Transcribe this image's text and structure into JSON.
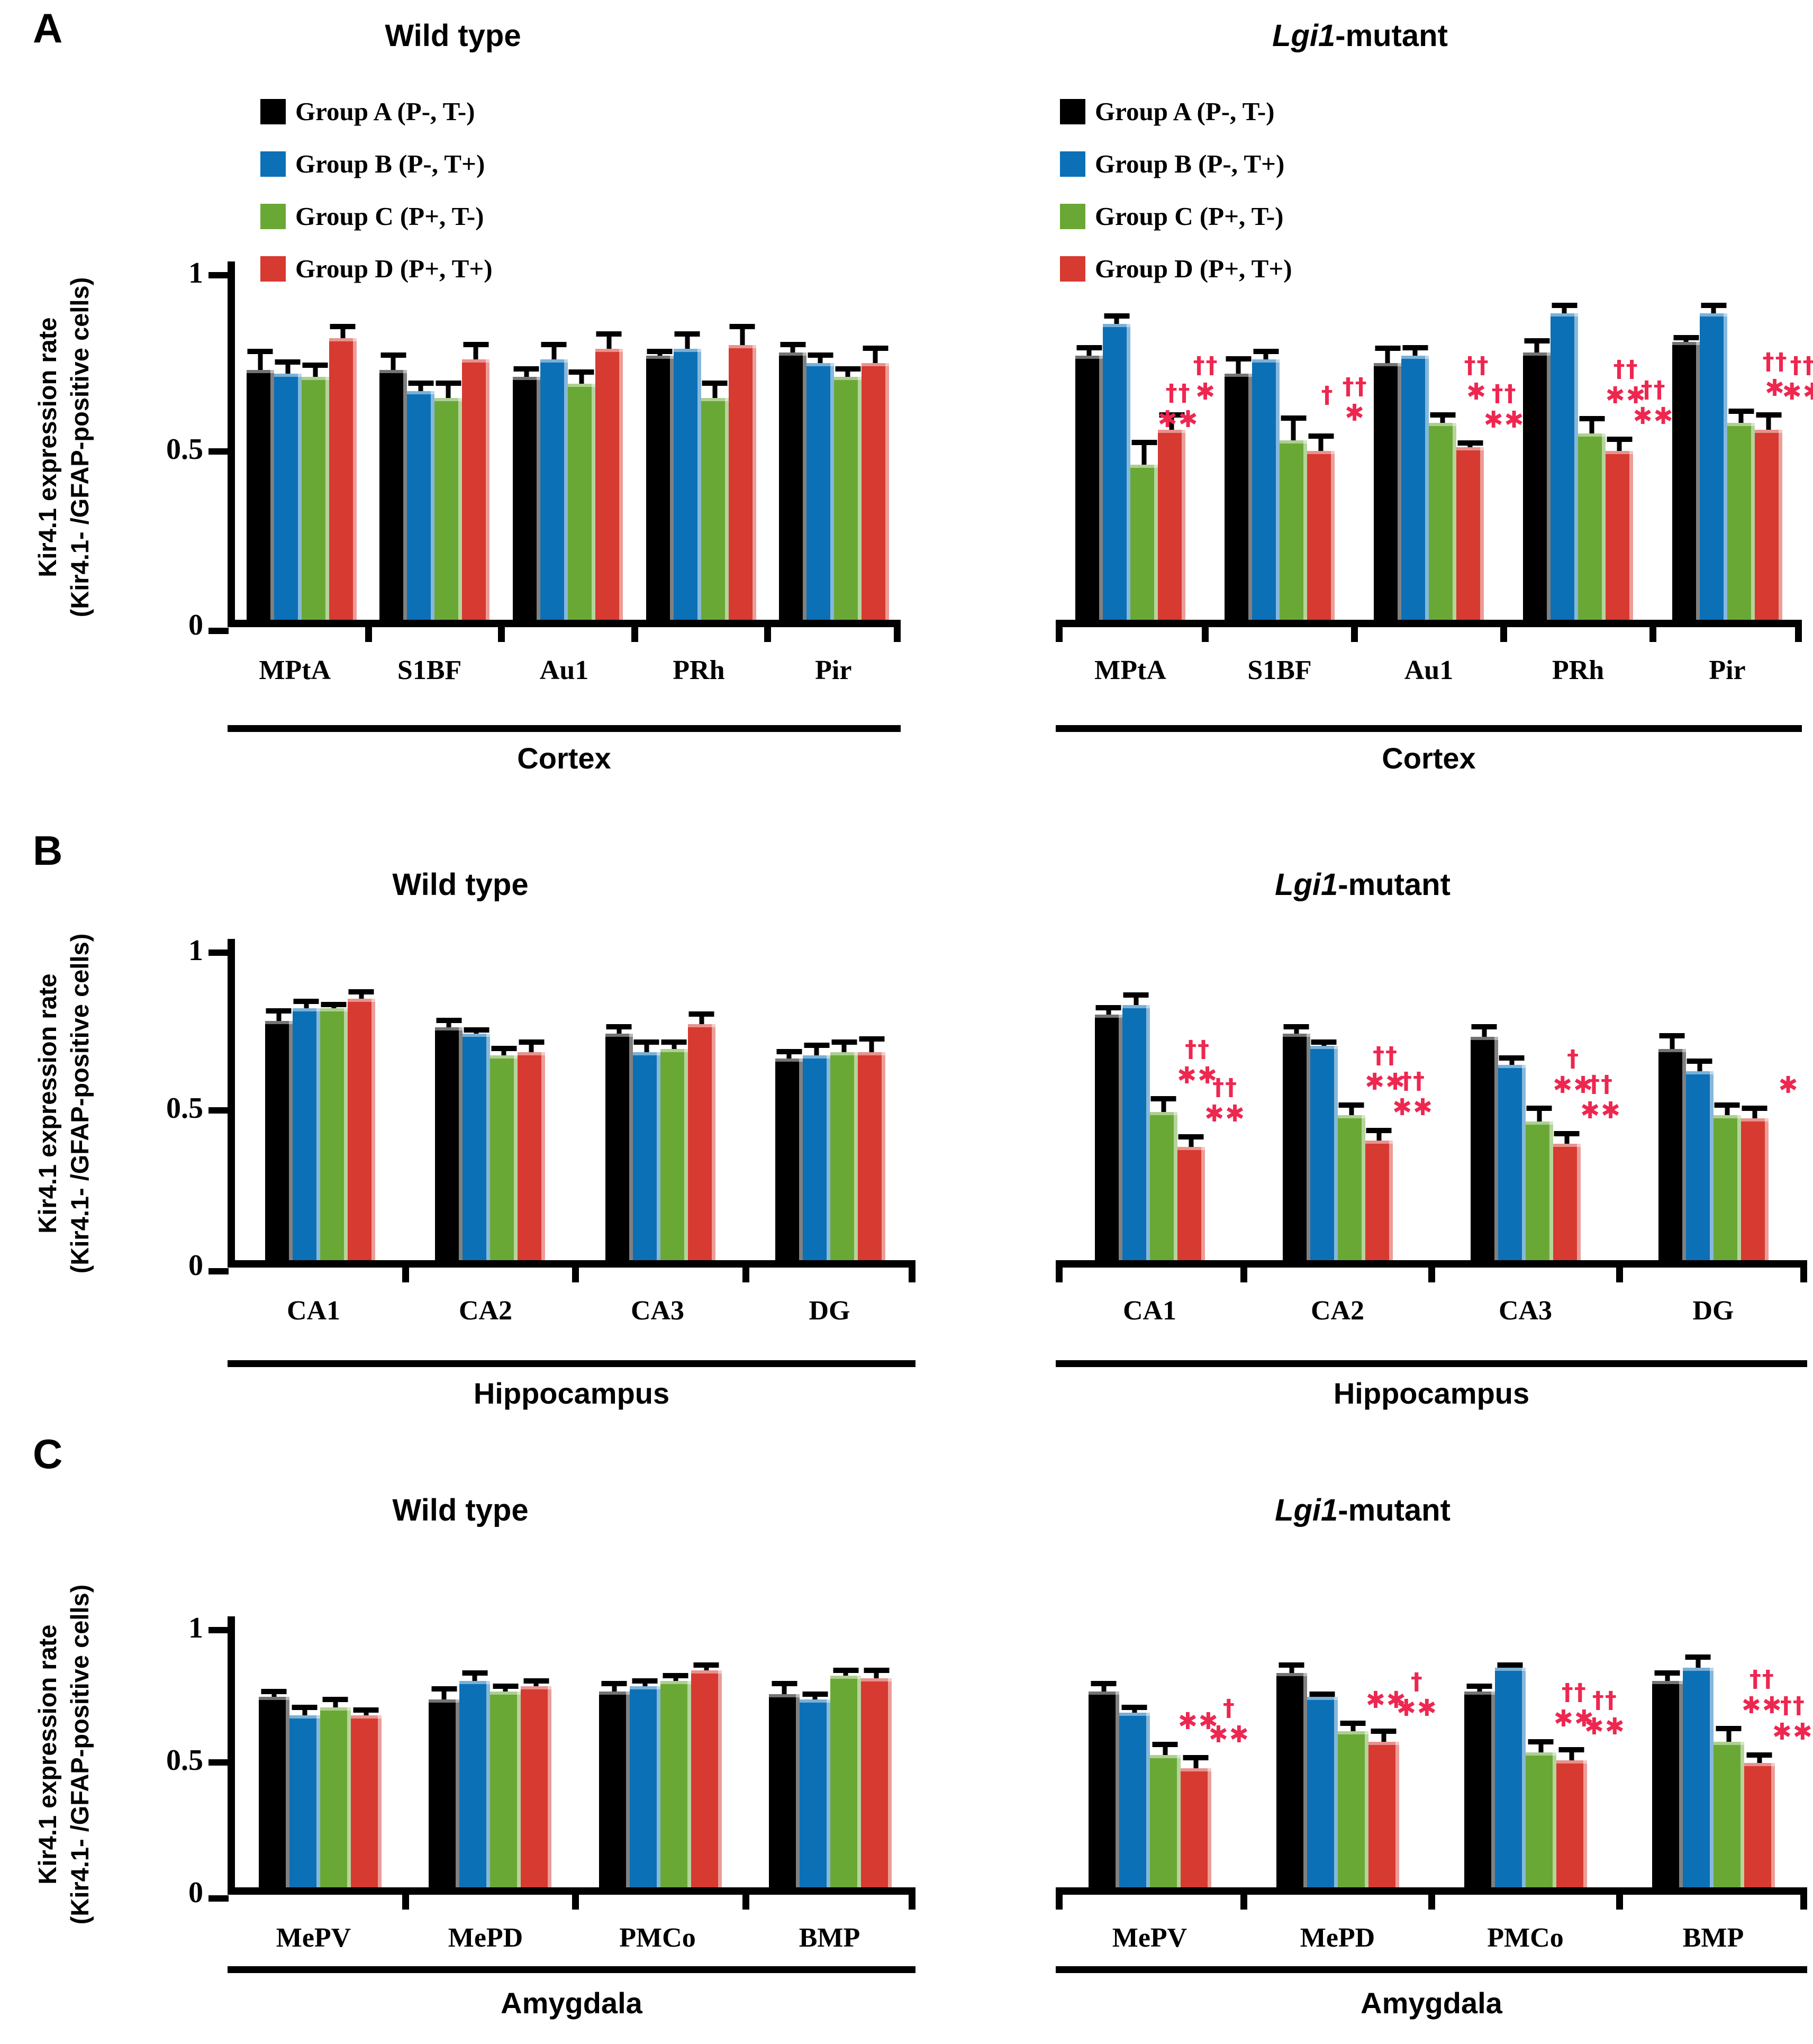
{
  "y_axis": {
    "label_line1": "Kir4.1 expression rate",
    "label_line2": "(Kir4.1- /GFAP-positive cells)",
    "tick_labels": [
      "1",
      "0.5",
      "0"
    ],
    "min": 0,
    "max": 1
  },
  "annotation_color": "#ee2750",
  "legend": {
    "items": [
      {
        "key": "A",
        "label": "Group A (P-, T-)",
        "color": "#000000"
      },
      {
        "key": "B",
        "label": "Group B (P-, T+)",
        "color": "#0c70b6"
      },
      {
        "key": "C",
        "label": "Group C (P+, T-)",
        "color": "#6aa836"
      },
      {
        "key": "D",
        "label": "Group D (P+, T+)",
        "color": "#d63a31"
      }
    ]
  },
  "panels": [
    {
      "letter": "A",
      "region": "Cortex"
    },
    {
      "letter": "B",
      "region": "Hippocampus"
    },
    {
      "letter": "C",
      "region": "Amygdala"
    }
  ],
  "chart_data": [
    {
      "id": "cortex-wild-type",
      "type": "bar",
      "panel": "A",
      "title_parts": [
        {
          "text": "Wild type",
          "italic": false
        }
      ],
      "show_legend": true,
      "ylim": [
        0,
        1
      ],
      "yticks": [
        1,
        0.5,
        0
      ],
      "region": "Cortex",
      "categories": [
        "MPtA",
        "S1BF",
        "Au1",
        "PRh",
        "Pir"
      ],
      "series": [
        {
          "key": "A",
          "name": "Group A (P-, T-)",
          "color": "#000000",
          "values": [
            0.71,
            0.71,
            0.69,
            0.75,
            0.76
          ],
          "errors": [
            0.06,
            0.05,
            0.03,
            0.02,
            0.03
          ]
        },
        {
          "key": "B",
          "name": "Group B (P-, T+)",
          "color": "#0c70b6",
          "values": [
            0.7,
            0.65,
            0.74,
            0.77,
            0.73
          ],
          "errors": [
            0.04,
            0.03,
            0.05,
            0.05,
            0.03
          ]
        },
        {
          "key": "C",
          "name": "Group C (P+, T-)",
          "color": "#6aa836",
          "values": [
            0.69,
            0.63,
            0.67,
            0.63,
            0.69
          ],
          "errors": [
            0.04,
            0.05,
            0.04,
            0.05,
            0.03
          ]
        },
        {
          "key": "D",
          "name": "Group D (P+, T+)",
          "color": "#d63a31",
          "values": [
            0.8,
            0.74,
            0.77,
            0.78,
            0.73
          ],
          "errors": [
            0.04,
            0.05,
            0.05,
            0.06,
            0.05
          ]
        }
      ],
      "annotations": []
    },
    {
      "id": "cortex-lgi1-mutant",
      "type": "bar",
      "panel": "A",
      "title_parts": [
        {
          "text": "Lgi1",
          "italic": true
        },
        {
          "text": "-mutant",
          "italic": false
        }
      ],
      "show_legend": true,
      "ylim": [
        0,
        1
      ],
      "yticks": [
        1,
        0.5,
        0
      ],
      "region": "Cortex",
      "categories": [
        "MPtA",
        "S1BF",
        "Au1",
        "PRh",
        "Pir"
      ],
      "series": [
        {
          "key": "A",
          "name": "Group A (P-, T-)",
          "color": "#000000",
          "values": [
            0.75,
            0.7,
            0.73,
            0.76,
            0.79
          ],
          "errors": [
            0.03,
            0.05,
            0.05,
            0.04,
            0.02
          ]
        },
        {
          "key": "B",
          "name": "Group B (P-, T+)",
          "color": "#0c70b6",
          "values": [
            0.84,
            0.74,
            0.75,
            0.87,
            0.87
          ],
          "errors": [
            0.03,
            0.03,
            0.03,
            0.03,
            0.03
          ]
        },
        {
          "key": "C",
          "name": "Group C (P+, T-)",
          "color": "#6aa836",
          "values": [
            0.44,
            0.51,
            0.56,
            0.53,
            0.56
          ],
          "errors": [
            0.07,
            0.07,
            0.03,
            0.05,
            0.04
          ]
        },
        {
          "key": "D",
          "name": "Group D (P+, T+)",
          "color": "#d63a31",
          "values": [
            0.54,
            0.48,
            0.49,
            0.48,
            0.54
          ],
          "errors": [
            0.05,
            0.05,
            0.02,
            0.04,
            0.05
          ]
        }
      ],
      "annotations": [
        {
          "category": "MPtA",
          "series": "C",
          "symbols": [
            "††",
            "**"
          ]
        },
        {
          "category": "MPtA",
          "series": "D",
          "symbols": [
            "††",
            "*"
          ]
        },
        {
          "category": "S1BF",
          "series": "C",
          "symbols": [
            "†"
          ]
        },
        {
          "category": "S1BF",
          "series": "D",
          "symbols": [
            "††",
            "*"
          ]
        },
        {
          "category": "Au1",
          "series": "C",
          "symbols": [
            "††",
            "*"
          ]
        },
        {
          "category": "Au1",
          "series": "D",
          "symbols": [
            "††",
            "**"
          ]
        },
        {
          "category": "PRh",
          "series": "C",
          "symbols": [
            "††",
            "**"
          ]
        },
        {
          "category": "PRh",
          "series": "D",
          "symbols": [
            "††",
            "**"
          ]
        },
        {
          "category": "Pir",
          "series": "C",
          "symbols": [
            "††",
            "*"
          ]
        },
        {
          "category": "Pir",
          "series": "D",
          "symbols": [
            "††",
            "**"
          ]
        }
      ]
    },
    {
      "id": "hippocampus-wild-type",
      "type": "bar",
      "panel": "B",
      "title_parts": [
        {
          "text": "Wild type",
          "italic": false
        }
      ],
      "show_legend": false,
      "ylim": [
        0,
        1
      ],
      "yticks": [
        1,
        0.5,
        0
      ],
      "region": "Hippocampus",
      "categories": [
        "CA1",
        "CA2",
        "CA3",
        "DG"
      ],
      "series": [
        {
          "key": "A",
          "name": "Group A (P-, T-)",
          "color": "#000000",
          "values": [
            0.76,
            0.74,
            0.72,
            0.64
          ],
          "errors": [
            0.04,
            0.03,
            0.03,
            0.03
          ]
        },
        {
          "key": "B",
          "name": "Group B (P-, T+)",
          "color": "#0c70b6",
          "values": [
            0.8,
            0.72,
            0.66,
            0.65
          ],
          "errors": [
            0.03,
            0.02,
            0.04,
            0.04
          ]
        },
        {
          "key": "C",
          "name": "Group C (P+, T-)",
          "color": "#6aa836",
          "values": [
            0.8,
            0.65,
            0.67,
            0.66
          ],
          "errors": [
            0.02,
            0.03,
            0.03,
            0.04
          ]
        },
        {
          "key": "D",
          "name": "Group D (P+, T+)",
          "color": "#d63a31",
          "values": [
            0.83,
            0.66,
            0.75,
            0.66
          ],
          "errors": [
            0.03,
            0.04,
            0.04,
            0.05
          ]
        }
      ],
      "annotations": []
    },
    {
      "id": "hippocampus-lgi1-mutant",
      "type": "bar",
      "panel": "B",
      "title_parts": [
        {
          "text": "Lgi1",
          "italic": true
        },
        {
          "text": "-mutant",
          "italic": false
        }
      ],
      "show_legend": false,
      "ylim": [
        0,
        1
      ],
      "yticks": [
        1,
        0.5,
        0
      ],
      "region": "Hippocampus",
      "categories": [
        "CA1",
        "CA2",
        "CA3",
        "DG"
      ],
      "series": [
        {
          "key": "A",
          "name": "Group A (P-, T-)",
          "color": "#000000",
          "values": [
            0.78,
            0.72,
            0.71,
            0.67
          ],
          "errors": [
            0.03,
            0.03,
            0.04,
            0.05
          ]
        },
        {
          "key": "B",
          "name": "Group B (P-, T+)",
          "color": "#0c70b6",
          "values": [
            0.81,
            0.68,
            0.62,
            0.6
          ],
          "errors": [
            0.04,
            0.02,
            0.03,
            0.04
          ]
        },
        {
          "key": "C",
          "name": "Group C (P+, T-)",
          "color": "#6aa836",
          "values": [
            0.47,
            0.46,
            0.44,
            0.46
          ],
          "errors": [
            0.05,
            0.04,
            0.05,
            0.04
          ]
        },
        {
          "key": "D",
          "name": "Group D (P+, T+)",
          "color": "#d63a31",
          "values": [
            0.36,
            0.38,
            0.37,
            0.45
          ],
          "errors": [
            0.04,
            0.04,
            0.04,
            0.04
          ]
        }
      ],
      "annotations": [
        {
          "category": "CA1",
          "series": "C",
          "symbols": [
            "††",
            "**"
          ]
        },
        {
          "category": "CA1",
          "series": "D",
          "symbols": [
            "††",
            "**"
          ]
        },
        {
          "category": "CA2",
          "series": "C",
          "symbols": [
            "††",
            "**"
          ]
        },
        {
          "category": "CA2",
          "series": "D",
          "symbols": [
            "††",
            "**"
          ]
        },
        {
          "category": "CA3",
          "series": "C",
          "symbols": [
            "†",
            "**"
          ]
        },
        {
          "category": "CA3",
          "series": "D",
          "symbols": [
            "††",
            "**"
          ]
        },
        {
          "category": "DG",
          "series": "D",
          "symbols": [
            "*"
          ]
        }
      ]
    },
    {
      "id": "amygdala-wild-type",
      "type": "bar",
      "panel": "C",
      "title_parts": [
        {
          "text": "Wild type",
          "italic": false
        }
      ],
      "show_legend": false,
      "ylim": [
        0,
        1
      ],
      "yticks": [
        1,
        0.5,
        0
      ],
      "region": "Amygdala",
      "categories": [
        "MePV",
        "MePD",
        "PMCo",
        "BMP"
      ],
      "series": [
        {
          "key": "A",
          "name": "Group A (P-, T-)",
          "color": "#000000",
          "values": [
            0.72,
            0.71,
            0.74,
            0.73
          ],
          "errors": [
            0.03,
            0.05,
            0.04,
            0.05
          ]
        },
        {
          "key": "B",
          "name": "Group B (P-, T+)",
          "color": "#0c70b6",
          "values": [
            0.65,
            0.78,
            0.76,
            0.71
          ],
          "errors": [
            0.04,
            0.04,
            0.03,
            0.03
          ]
        },
        {
          "key": "C",
          "name": "Group C (P+, T-)",
          "color": "#6aa836",
          "values": [
            0.68,
            0.74,
            0.78,
            0.8
          ],
          "errors": [
            0.04,
            0.03,
            0.03,
            0.03
          ]
        },
        {
          "key": "D",
          "name": "Group D (P+, T+)",
          "color": "#d63a31",
          "values": [
            0.65,
            0.76,
            0.82,
            0.79
          ],
          "errors": [
            0.03,
            0.03,
            0.03,
            0.04
          ]
        }
      ],
      "annotations": []
    },
    {
      "id": "amygdala-lgi1-mutant",
      "type": "bar",
      "panel": "C",
      "title_parts": [
        {
          "text": "Lgi1",
          "italic": true
        },
        {
          "text": "-mutant",
          "italic": false
        }
      ],
      "show_legend": false,
      "ylim": [
        0,
        1
      ],
      "yticks": [
        1,
        0.5,
        0
      ],
      "region": "Amygdala",
      "categories": [
        "MePV",
        "MePD",
        "PMCo",
        "BMP"
      ],
      "series": [
        {
          "key": "A",
          "name": "Group A (P-, T-)",
          "color": "#000000",
          "values": [
            0.74,
            0.81,
            0.74,
            0.78
          ],
          "errors": [
            0.04,
            0.04,
            0.03,
            0.04
          ]
        },
        {
          "key": "B",
          "name": "Group B (P-, T+)",
          "color": "#0c70b6",
          "values": [
            0.66,
            0.72,
            0.83,
            0.83
          ],
          "errors": [
            0.03,
            0.02,
            0.02,
            0.05
          ]
        },
        {
          "key": "C",
          "name": "Group C (P+, T-)",
          "color": "#6aa836",
          "values": [
            0.5,
            0.59,
            0.51,
            0.55
          ],
          "errors": [
            0.05,
            0.04,
            0.05,
            0.06
          ]
        },
        {
          "key": "D",
          "name": "Group D (P+, T+)",
          "color": "#d63a31",
          "values": [
            0.45,
            0.55,
            0.48,
            0.47
          ],
          "errors": [
            0.05,
            0.05,
            0.05,
            0.04
          ]
        }
      ],
      "annotations": [
        {
          "category": "MePV",
          "series": "C",
          "symbols": [
            "**"
          ]
        },
        {
          "category": "MePV",
          "series": "D",
          "symbols": [
            "†",
            "**"
          ]
        },
        {
          "category": "MePD",
          "series": "C",
          "symbols": [
            "**"
          ]
        },
        {
          "category": "MePD",
          "series": "D",
          "symbols": [
            "†",
            "**"
          ]
        },
        {
          "category": "PMCo",
          "series": "C",
          "symbols": [
            "††",
            "**"
          ]
        },
        {
          "category": "PMCo",
          "series": "D",
          "symbols": [
            "††",
            "**"
          ]
        },
        {
          "category": "BMP",
          "series": "C",
          "symbols": [
            "††",
            "**"
          ]
        },
        {
          "category": "BMP",
          "series": "D",
          "symbols": [
            "††",
            "**"
          ]
        }
      ]
    }
  ]
}
